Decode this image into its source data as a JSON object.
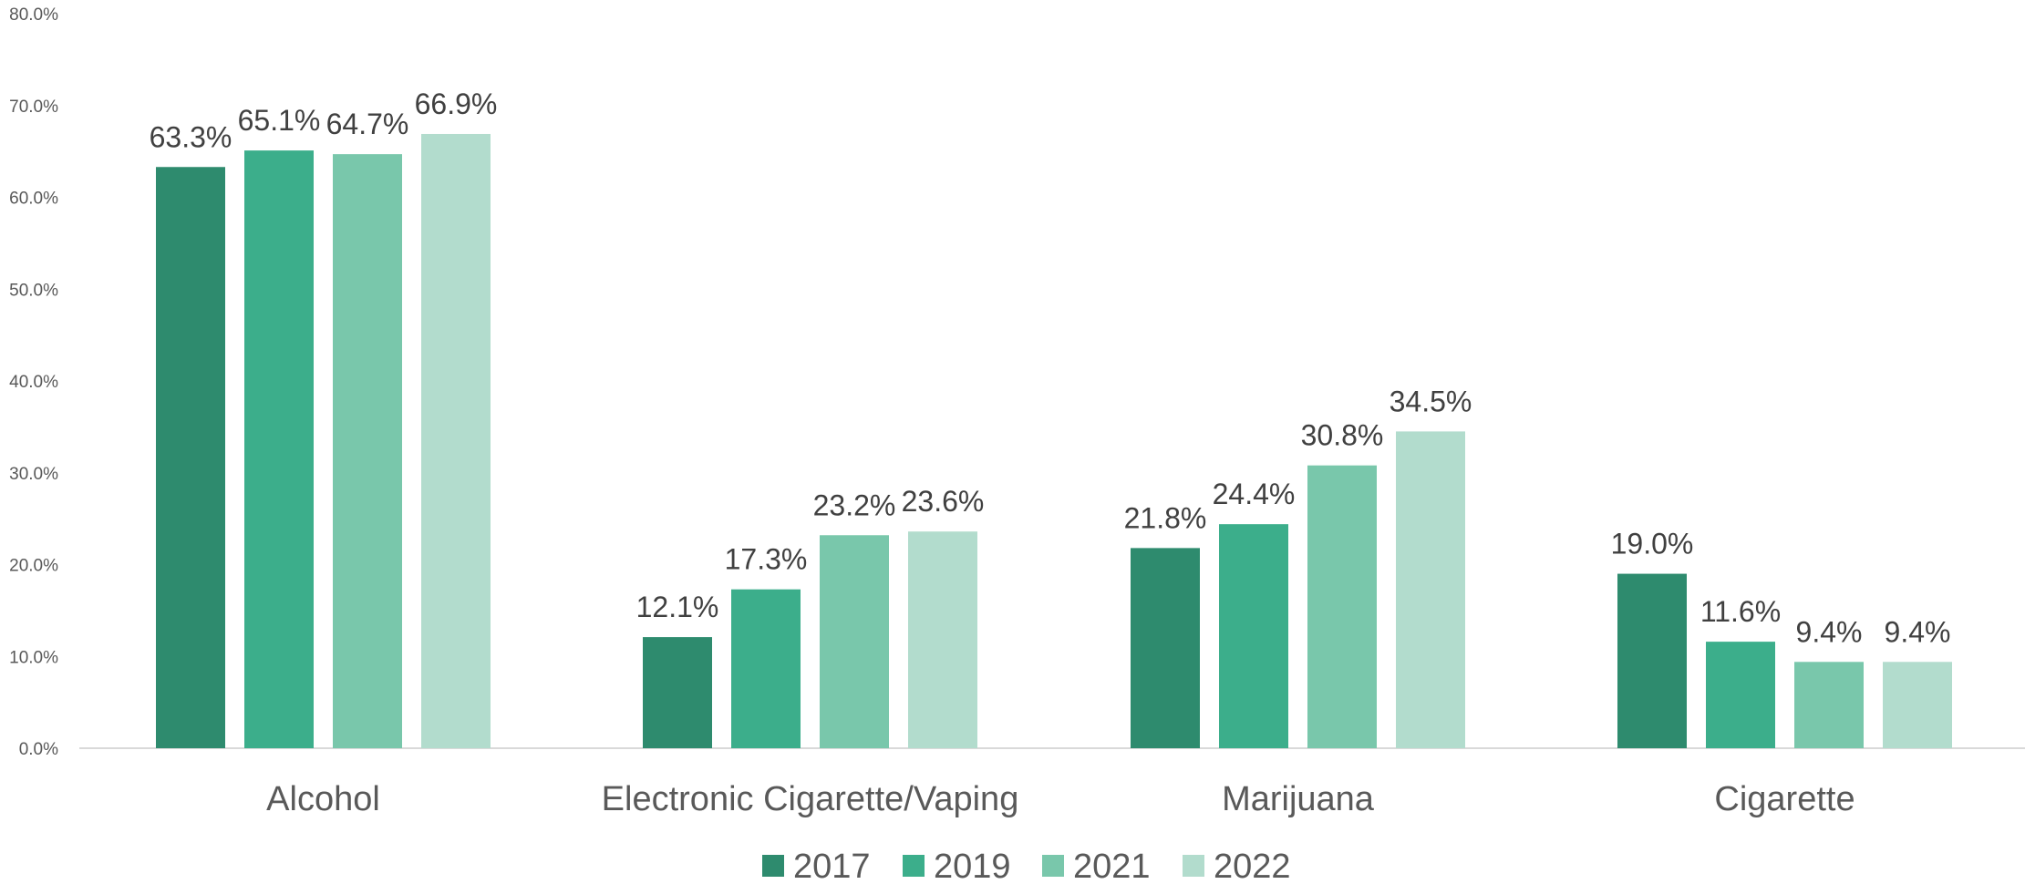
{
  "chart_data": {
    "type": "bar",
    "title": "",
    "xlabel": "",
    "ylabel": "",
    "ylim": [
      0,
      80
    ],
    "y_ticks": [
      "0.0%",
      "10.0%",
      "20.0%",
      "30.0%",
      "40.0%",
      "50.0%",
      "60.0%",
      "70.0%",
      "80.0%"
    ],
    "grid": false,
    "legend_position": "bottom",
    "categories": [
      "Alcohol",
      "Electronic Cigarette/Vaping",
      "Marijuana",
      "Cigarette"
    ],
    "series": [
      {
        "name": "2017",
        "color": "#2e8b6e",
        "values": [
          63.3,
          12.1,
          21.8,
          19.0
        ],
        "labels": [
          "63.3%",
          "12.1%",
          "21.8%",
          "19.0%"
        ]
      },
      {
        "name": "2019",
        "color": "#3cae8b",
        "values": [
          65.1,
          17.3,
          24.4,
          11.6
        ],
        "labels": [
          "65.1%",
          "17.3%",
          "24.4%",
          "11.6%"
        ]
      },
      {
        "name": "2021",
        "color": "#79c7ab",
        "values": [
          64.7,
          23.2,
          30.8,
          9.4
        ],
        "labels": [
          "64.7%",
          "23.2%",
          "30.8%",
          "9.4%"
        ]
      },
      {
        "name": "2022",
        "color": "#b2dccd",
        "values": [
          66.9,
          23.6,
          34.5,
          9.4
        ],
        "labels": [
          "66.9%",
          "23.6%",
          "34.5%",
          "9.4%"
        ]
      }
    ]
  }
}
